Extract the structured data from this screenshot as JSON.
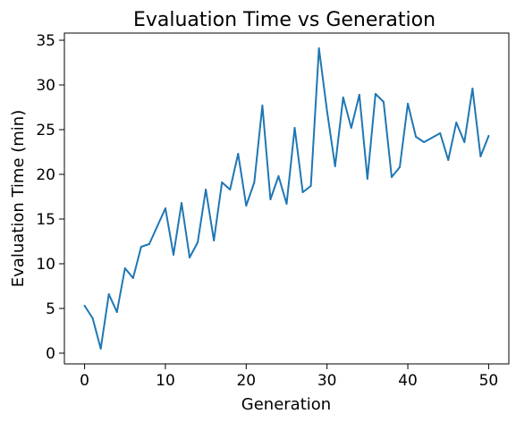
{
  "chart_data": {
    "type": "line",
    "title": "Evaluation Time vs Generation",
    "xlabel": "Generation",
    "ylabel": "Evaluation Time (min)",
    "xlim": [
      -2.5,
      52.5
    ],
    "ylim": [
      -1.2,
      35.8
    ],
    "x_ticks": [
      0,
      10,
      20,
      30,
      40,
      50
    ],
    "y_ticks": [
      0,
      5,
      10,
      15,
      20,
      25,
      30,
      35
    ],
    "grid": false,
    "line_color": "#1f77b4",
    "series": [
      {
        "x": [
          0,
          1,
          2,
          3,
          4,
          5,
          6,
          7,
          8,
          9,
          10,
          11,
          12,
          13,
          14,
          15,
          16,
          17,
          18,
          19,
          20,
          21,
          22,
          23,
          24,
          25,
          26,
          27,
          28,
          29,
          30,
          31,
          32,
          33,
          34,
          35,
          36,
          37,
          38,
          39,
          40,
          41,
          42,
          44,
          45,
          46,
          47,
          48,
          49,
          50
        ],
        "values": [
          5.3,
          3.9,
          0.5,
          6.6,
          4.6,
          9.5,
          8.4,
          11.9,
          12.2,
          14.2,
          16.2,
          11.0,
          16.8,
          10.7,
          12.4,
          18.3,
          12.6,
          19.1,
          18.3,
          22.3,
          16.5,
          19.1,
          27.7,
          17.2,
          19.8,
          16.7,
          25.2,
          18.0,
          18.7,
          34.1,
          27.1,
          20.9,
          28.6,
          25.2,
          28.9,
          19.5,
          29.0,
          28.1,
          19.7,
          20.8,
          27.9,
          24.2,
          23.6,
          24.6,
          21.6,
          25.8,
          23.6,
          29.6,
          22.0,
          24.3
        ]
      }
    ]
  }
}
